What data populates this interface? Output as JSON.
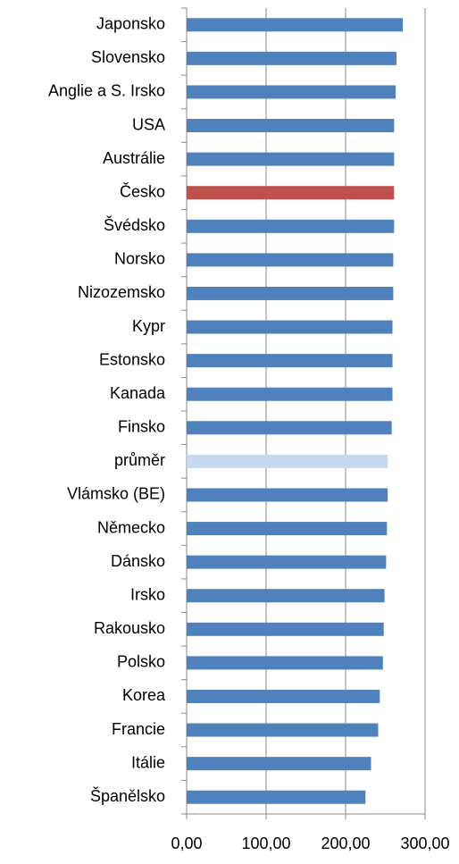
{
  "chart_data": {
    "type": "bar",
    "orientation": "horizontal",
    "categories": [
      "Japonsko",
      "Slovensko",
      "Anglie a S. Irsko",
      "USA",
      "Austrálie",
      "Česko",
      "Švédsko",
      "Norsko",
      "Nizozemsko",
      "Kypr",
      "Estonsko",
      "Kanada",
      "Finsko",
      "průměr",
      "Vlámsko (BE)",
      "Německo",
      "Dánsko",
      "Irsko",
      "Rakousko",
      "Polsko",
      "Korea",
      "Francie",
      "Itálie",
      "Španělsko"
    ],
    "values": [
      272,
      264,
      263,
      261,
      261,
      261,
      261,
      260,
      260,
      259,
      259,
      259,
      258,
      253,
      253,
      252,
      251,
      249,
      248,
      247,
      243,
      241,
      232,
      225
    ],
    "colors": [
      "#4f81bd",
      "#4f81bd",
      "#4f81bd",
      "#4f81bd",
      "#4f81bd",
      "#c0504d",
      "#4f81bd",
      "#4f81bd",
      "#4f81bd",
      "#4f81bd",
      "#4f81bd",
      "#4f81bd",
      "#4f81bd",
      "#c6d9f1",
      "#4f81bd",
      "#4f81bd",
      "#4f81bd",
      "#4f81bd",
      "#4f81bd",
      "#4f81bd",
      "#4f81bd",
      "#4f81bd",
      "#4f81bd",
      "#4f81bd"
    ],
    "xlim": [
      0,
      300
    ],
    "xticks": [
      {
        "value": 0,
        "label": "0,00"
      },
      {
        "value": 100,
        "label": "100,00"
      },
      {
        "value": 200,
        "label": "200,00"
      },
      {
        "value": 300,
        "label": "300,00"
      }
    ],
    "grid": true
  }
}
